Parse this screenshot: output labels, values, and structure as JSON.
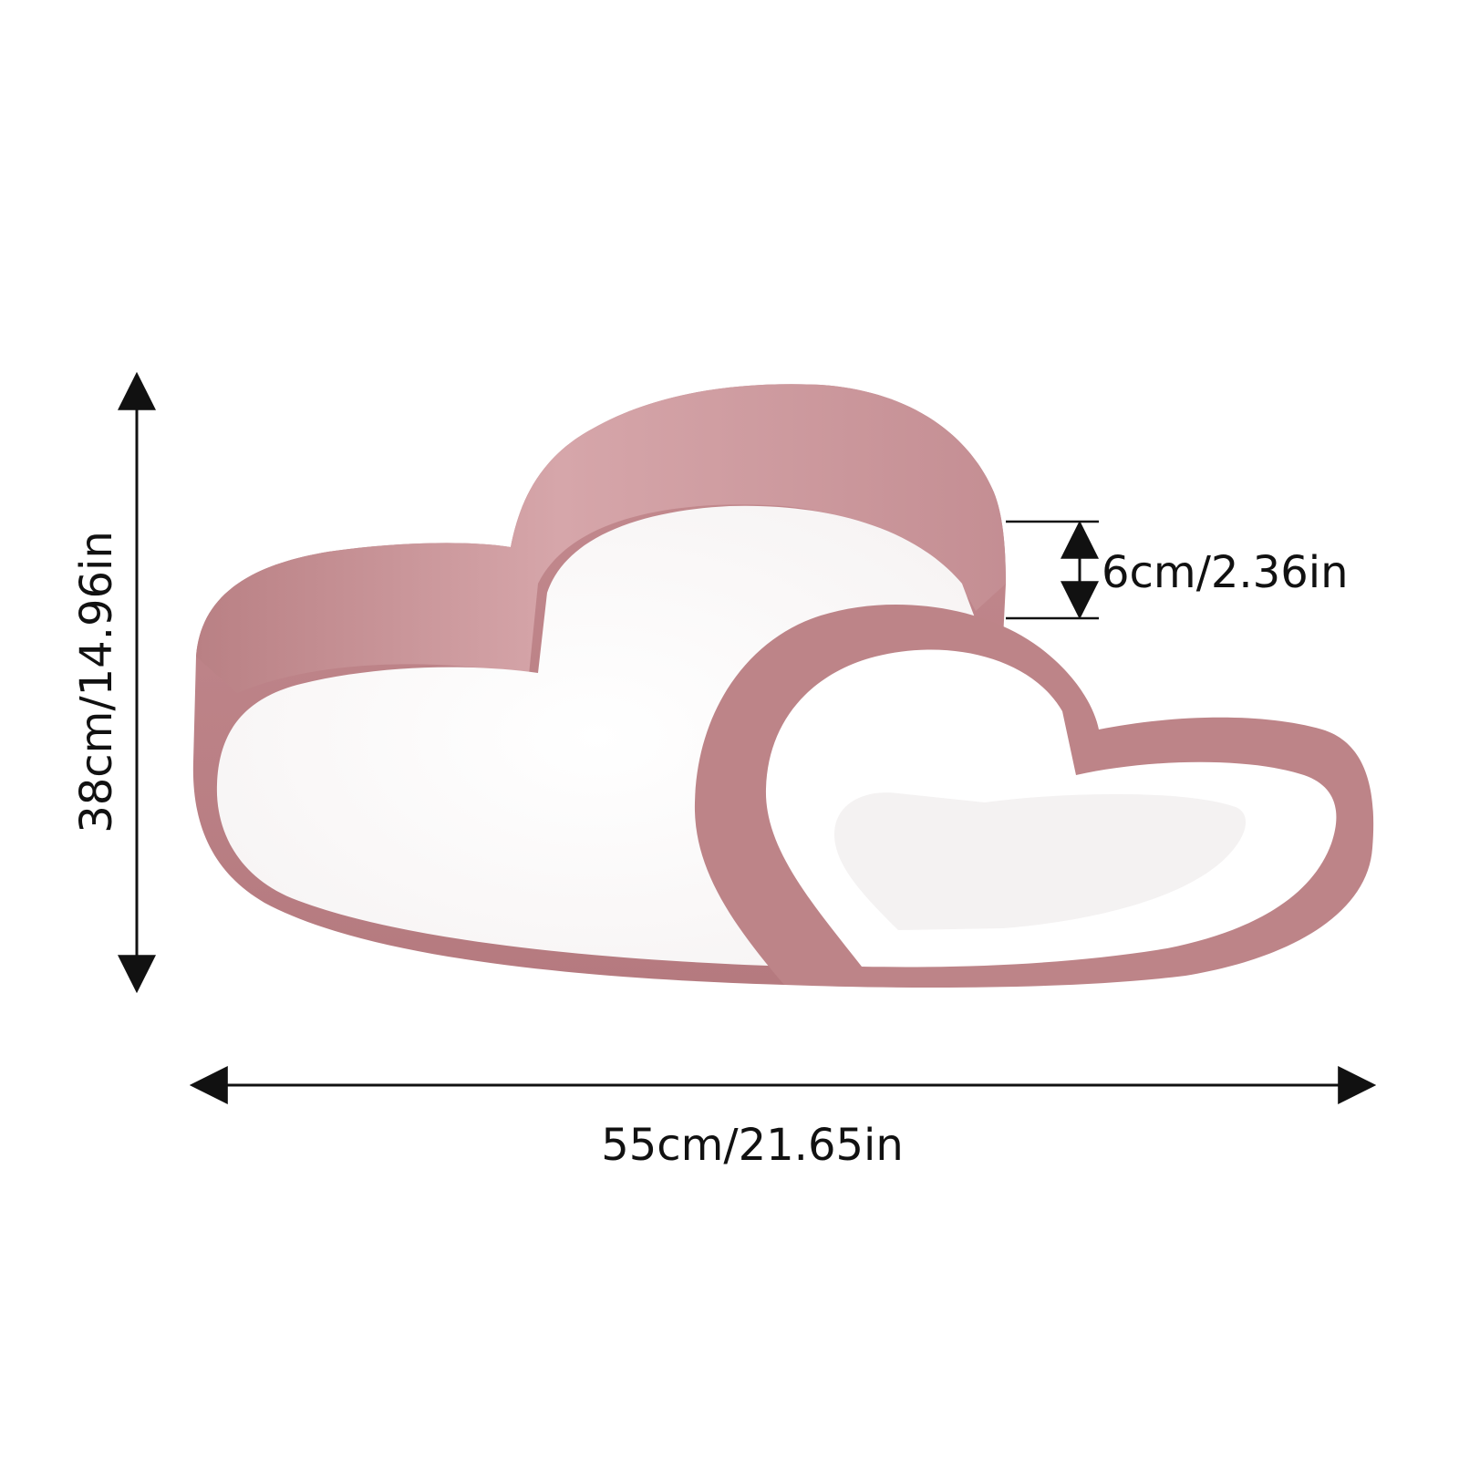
{
  "dimensions": {
    "height_label": "38cm/14.96in",
    "width_label": "55cm/21.65in",
    "thickness_label": "6cm/2.36in"
  },
  "colors": {
    "background": "#ffffff",
    "frame_pink": "#c98f92",
    "frame_pink_dark": "#b77c80",
    "frame_pink_light": "#e3b2b7",
    "diffuser_white": "#ffffff",
    "dimension_line": "#111111"
  }
}
